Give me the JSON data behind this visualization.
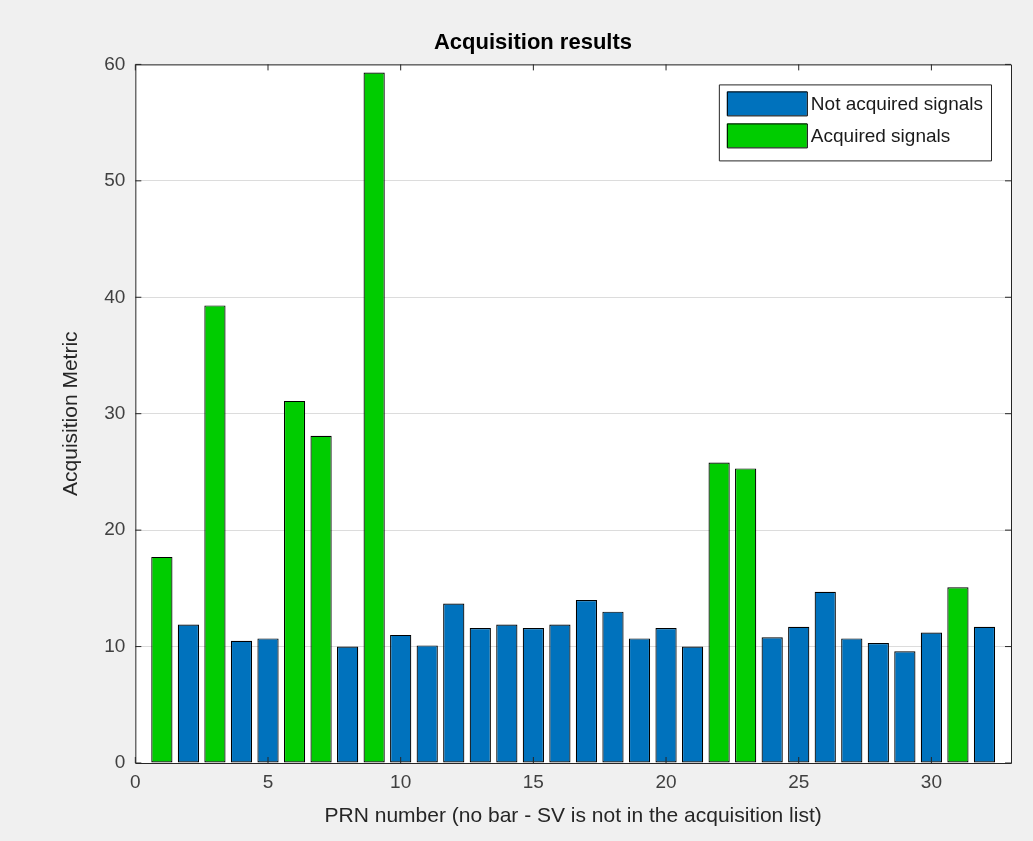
{
  "chart_data": {
    "type": "bar",
    "title": "Acquisition results",
    "xlabel": "PRN number (no bar - SV is not in the acquisition list)",
    "ylabel": "Acquisition Metric",
    "x": [
      1,
      2,
      3,
      4,
      5,
      6,
      7,
      8,
      9,
      10,
      11,
      12,
      13,
      14,
      15,
      16,
      17,
      18,
      19,
      20,
      21,
      22,
      23,
      24,
      25,
      26,
      27,
      28,
      29,
      30,
      31,
      32
    ],
    "series": [
      {
        "name": "Not acquired signals",
        "color": "#0072bd",
        "values": [
          null,
          11.9,
          null,
          10.5,
          10.7,
          null,
          null,
          10.0,
          null,
          11.0,
          10.1,
          13.7,
          11.6,
          11.9,
          11.6,
          11.9,
          14.0,
          13.0,
          10.7,
          11.6,
          10.0,
          null,
          null,
          10.8,
          11.7,
          14.7,
          10.7,
          10.3,
          9.6,
          11.2,
          null,
          11.7
        ]
      },
      {
        "name": "Acquired signals",
        "color": "#00cc00",
        "values": [
          17.7,
          null,
          39.3,
          null,
          null,
          31.1,
          28.1,
          null,
          59.3,
          null,
          null,
          null,
          null,
          null,
          null,
          null,
          null,
          null,
          null,
          null,
          null,
          25.8,
          25.3,
          null,
          null,
          null,
          null,
          null,
          null,
          null,
          15.1,
          null
        ]
      }
    ],
    "xlim": [
      0,
      33
    ],
    "xticks": [
      0,
      5,
      10,
      15,
      20,
      25,
      30
    ],
    "ylim": [
      0,
      60
    ],
    "yticks": [
      0,
      10,
      20,
      30,
      40,
      50,
      60
    ],
    "grid": "y",
    "legend": "top right"
  }
}
